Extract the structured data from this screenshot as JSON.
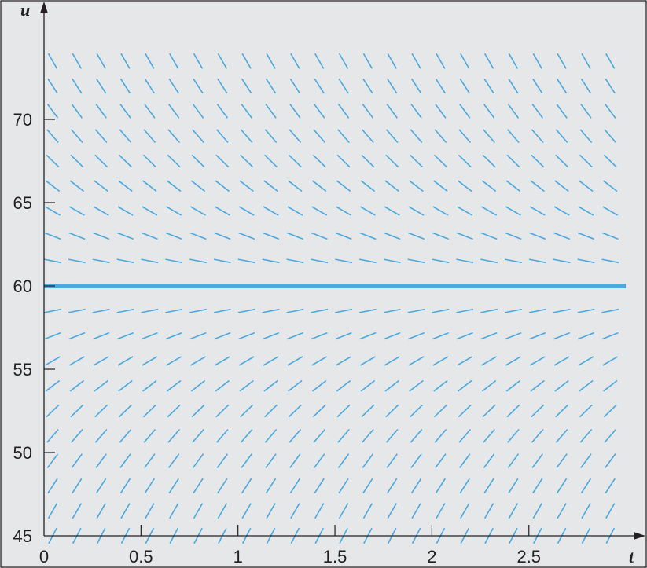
{
  "chart_data": {
    "type": "direction-field",
    "xlabel": "t",
    "ylabel": "u",
    "xlim": [
      0,
      3.1
    ],
    "ylim": [
      45,
      75
    ],
    "x_ticks": [
      0,
      0.5,
      1,
      1.5,
      2,
      2.5
    ],
    "x_tick_labels": [
      "0",
      "0.5",
      "1",
      "1.5",
      "2",
      "2.5"
    ],
    "y_ticks": [
      45,
      50,
      55,
      60,
      65,
      70
    ],
    "y_tick_labels": [
      "45",
      "50",
      "55",
      "60",
      "65",
      "70"
    ],
    "slope_function": "du/dt = -1.5 (u - 60)",
    "field_grid": {
      "t_start": 0,
      "t_step": 0.125,
      "t_end": 2.875,
      "u_start": 45,
      "u_step": 1.5,
      "u_end": 73.5
    },
    "equilibrium": {
      "u": 60,
      "t_range": [
        0,
        3
      ]
    },
    "colors": {
      "field": "#4aa8e0",
      "equilibrium": "#4aa8e0",
      "background": "#e6e7e8",
      "axis": "#231f20"
    },
    "grid": false
  }
}
